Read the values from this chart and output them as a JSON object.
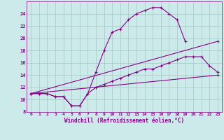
{
  "xlabel": "Windchill (Refroidissement éolien,°C)",
  "bg_color": "#cdeaea",
  "line_color": "#880088",
  "grid_color": "#aacccc",
  "xlim": [
    -0.5,
    23.5
  ],
  "ylim": [
    8,
    26
  ],
  "yticks": [
    8,
    10,
    12,
    14,
    16,
    18,
    20,
    22,
    24
  ],
  "xticks": [
    0,
    1,
    2,
    3,
    4,
    5,
    6,
    7,
    8,
    9,
    10,
    11,
    12,
    13,
    14,
    15,
    16,
    17,
    18,
    19,
    20,
    21,
    22,
    23
  ],
  "curve1_x": [
    0,
    1,
    2,
    3,
    4,
    5,
    6,
    7,
    8,
    9,
    10,
    11,
    12,
    13,
    14,
    15,
    16,
    17,
    18,
    19
  ],
  "curve1_y": [
    11.0,
    11.0,
    11.0,
    10.5,
    10.5,
    9.0,
    9.0,
    11.0,
    14.5,
    18.0,
    21.0,
    21.5,
    23.0,
    24.0,
    24.5,
    25.0,
    25.0,
    24.0,
    23.0,
    19.5
  ],
  "curve2_x": [
    0,
    1,
    2,
    3,
    4,
    5,
    6,
    7,
    8,
    9,
    10,
    11,
    12,
    13,
    14,
    15,
    16,
    17,
    18,
    19,
    20,
    21,
    22,
    23
  ],
  "curve2_y": [
    11.0,
    11.0,
    11.0,
    10.5,
    10.5,
    9.0,
    9.0,
    11.0,
    12.0,
    12.5,
    13.0,
    13.5,
    14.0,
    14.5,
    15.0,
    15.0,
    15.5,
    16.0,
    16.5,
    17.0,
    17.0,
    17.0,
    15.5,
    14.5
  ],
  "curve3_x": [
    0,
    23
  ],
  "curve3_y": [
    11.0,
    19.5
  ],
  "curve4_x": [
    0,
    23
  ],
  "curve4_y": [
    11.0,
    14.0
  ]
}
